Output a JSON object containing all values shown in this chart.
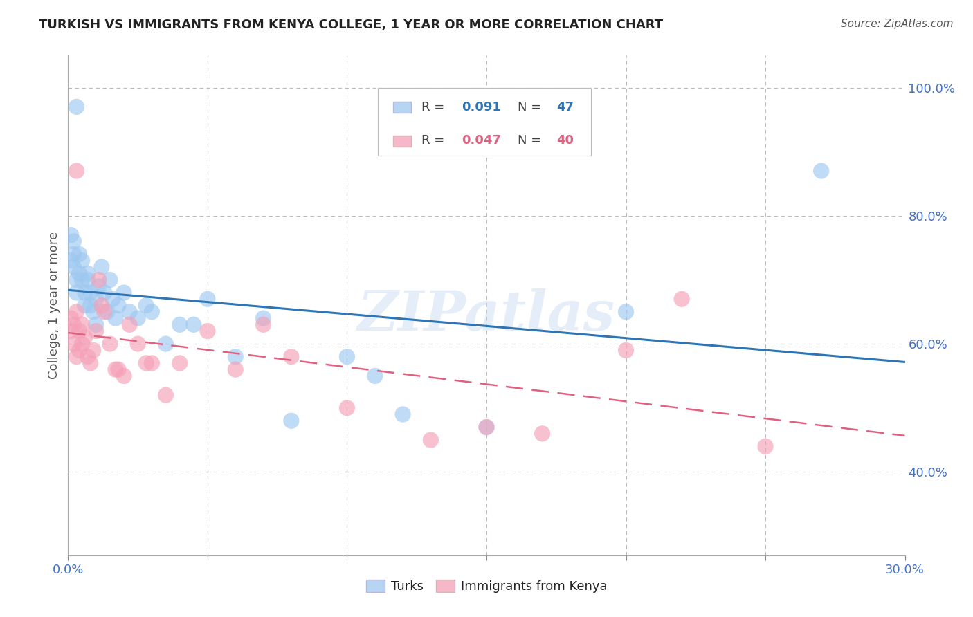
{
  "title": "TURKISH VS IMMIGRANTS FROM KENYA COLLEGE, 1 YEAR OR MORE CORRELATION CHART",
  "source": "Source: ZipAtlas.com",
  "xlabel_ticks_show": [
    "0.0%",
    "30.0%"
  ],
  "xlabel_vals_show": [
    0.0,
    0.3
  ],
  "ylabel": "College, 1 year or more",
  "right_ytick_labels": [
    "40.0%",
    "60.0%",
    "80.0%",
    "100.0%"
  ],
  "right_ytick_vals": [
    0.4,
    0.6,
    0.8,
    1.0
  ],
  "xlim": [
    0.0,
    0.3
  ],
  "ylim": [
    0.27,
    1.05
  ],
  "turks_color": "#9EC8F0",
  "kenya_color": "#F4A0B8",
  "turks_line_color": "#2E75B6",
  "kenya_line_color": "#E06080",
  "legend_R_turks": "0.091",
  "legend_N_turks": "47",
  "legend_R_kenya": "0.047",
  "legend_N_kenya": "40",
  "legend_label_turks": "Turks",
  "legend_label_kenya": "Immigrants from Kenya",
  "turks_x": [
    0.001,
    0.001,
    0.002,
    0.002,
    0.002,
    0.003,
    0.003,
    0.004,
    0.004,
    0.005,
    0.005,
    0.006,
    0.006,
    0.007,
    0.007,
    0.008,
    0.008,
    0.009,
    0.01,
    0.01,
    0.011,
    0.012,
    0.013,
    0.014,
    0.015,
    0.016,
    0.017,
    0.018,
    0.02,
    0.022,
    0.025,
    0.028,
    0.03,
    0.035,
    0.04,
    0.045,
    0.05,
    0.06,
    0.07,
    0.08,
    0.1,
    0.11,
    0.12,
    0.15,
    0.2,
    0.27,
    0.003
  ],
  "turks_y": [
    0.77,
    0.73,
    0.74,
    0.72,
    0.76,
    0.7,
    0.68,
    0.71,
    0.74,
    0.73,
    0.7,
    0.68,
    0.66,
    0.71,
    0.7,
    0.68,
    0.66,
    0.65,
    0.67,
    0.63,
    0.69,
    0.72,
    0.68,
    0.65,
    0.7,
    0.67,
    0.64,
    0.66,
    0.68,
    0.65,
    0.64,
    0.66,
    0.65,
    0.6,
    0.63,
    0.63,
    0.67,
    0.58,
    0.64,
    0.48,
    0.58,
    0.55,
    0.49,
    0.47,
    0.65,
    0.87,
    0.97
  ],
  "kenya_x": [
    0.001,
    0.001,
    0.002,
    0.002,
    0.003,
    0.003,
    0.004,
    0.004,
    0.005,
    0.005,
    0.006,
    0.007,
    0.008,
    0.009,
    0.01,
    0.011,
    0.012,
    0.013,
    0.015,
    0.017,
    0.018,
    0.02,
    0.022,
    0.025,
    0.028,
    0.03,
    0.035,
    0.04,
    0.05,
    0.06,
    0.07,
    0.08,
    0.1,
    0.13,
    0.15,
    0.17,
    0.2,
    0.22,
    0.25,
    0.003
  ],
  "kenya_y": [
    0.64,
    0.62,
    0.63,
    0.6,
    0.65,
    0.58,
    0.59,
    0.62,
    0.63,
    0.6,
    0.61,
    0.58,
    0.57,
    0.59,
    0.62,
    0.7,
    0.66,
    0.65,
    0.6,
    0.56,
    0.56,
    0.55,
    0.63,
    0.6,
    0.57,
    0.57,
    0.52,
    0.57,
    0.62,
    0.56,
    0.63,
    0.58,
    0.5,
    0.45,
    0.47,
    0.46,
    0.59,
    0.67,
    0.44,
    0.87
  ],
  "watermark": "ZIPatlas",
  "background_color": "#FFFFFF",
  "grid_color": "#BBBBBB"
}
